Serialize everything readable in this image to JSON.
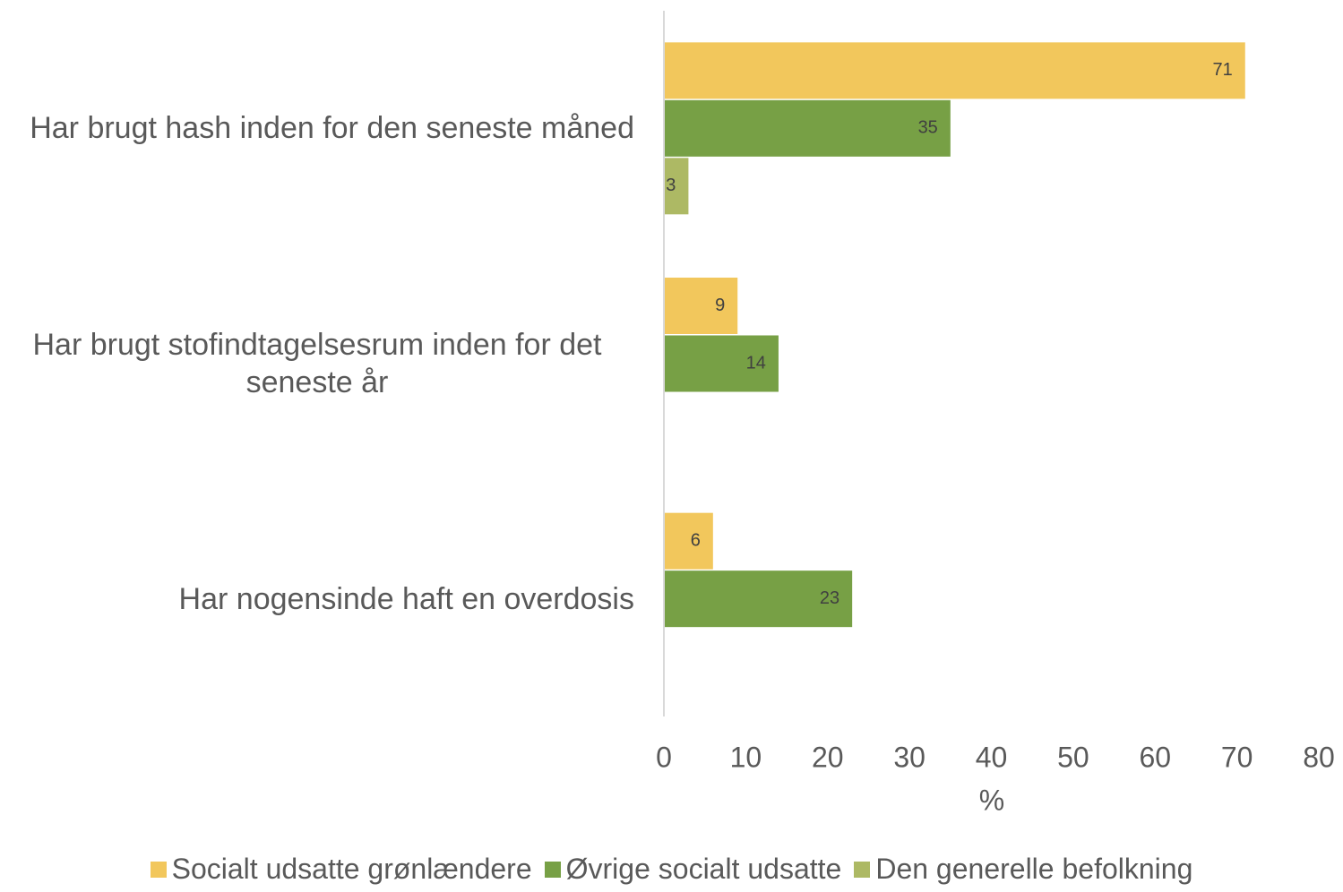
{
  "chart_data": {
    "type": "bar",
    "orientation": "horizontal",
    "categories": [
      "Har brugt hash inden for den seneste måned",
      "Har brugt stofindtagelsesrum inden for det seneste år",
      "Har nogensinde haft en overdosis"
    ],
    "series": [
      {
        "name": "Socialt udsatte grønlændere",
        "color": "#f2c75c",
        "values": [
          71,
          9,
          6
        ]
      },
      {
        "name": "Øvrige socialt udsatte",
        "color": "#77a045",
        "values": [
          35,
          14,
          23
        ]
      },
      {
        "name": "Den generelle befolkning",
        "color": "#adb964",
        "values": [
          3,
          null,
          null
        ]
      }
    ],
    "xlabel": "%",
    "xlim": [
      0,
      80
    ],
    "xticks": [
      0,
      10,
      20,
      30,
      40,
      50,
      60,
      70,
      80
    ],
    "legend": "bottom"
  }
}
